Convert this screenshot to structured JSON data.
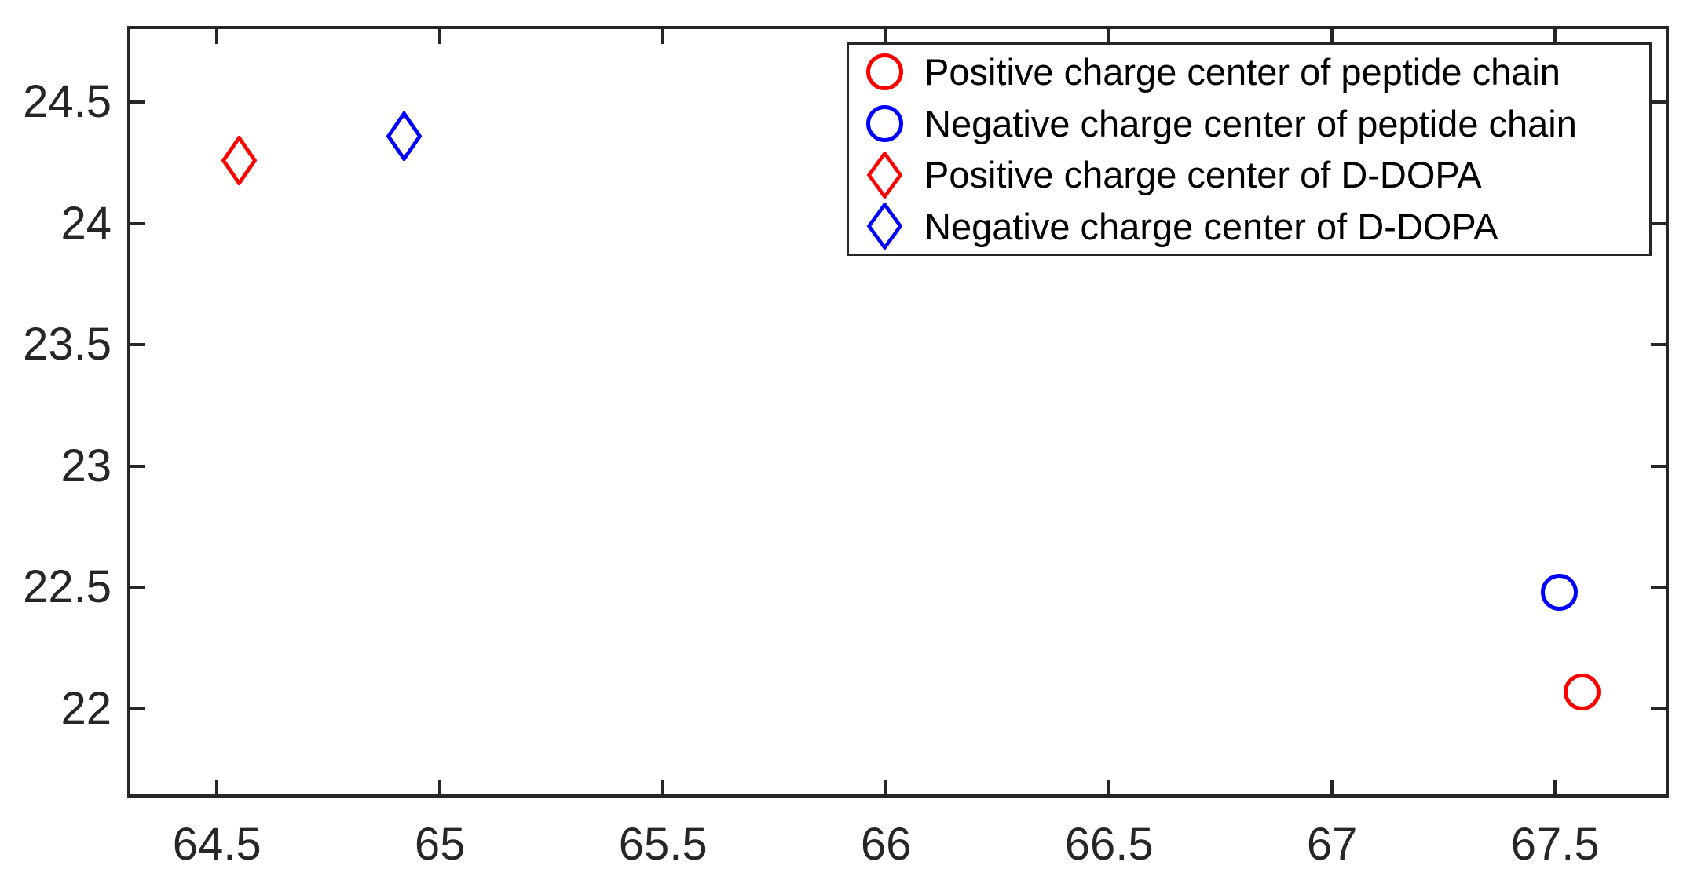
{
  "figure": {
    "background": "#ffffff",
    "axis_color": "#262626",
    "tick_text_color": "#262626",
    "legend_text_color": "#000000"
  },
  "chart_data": {
    "type": "scatter",
    "title": "",
    "xlabel": "",
    "ylabel": "",
    "xlim": [
      64.299,
      67.755
    ],
    "ylim": [
      21.634,
      24.814
    ],
    "xticks": [
      64.5,
      65,
      65.5,
      66,
      66.5,
      67,
      67.5
    ],
    "yticks": [
      22,
      22.5,
      23,
      23.5,
      24,
      24.5
    ],
    "grid": false,
    "legend_position": "top-right",
    "series": [
      {
        "name": "Positive charge center of peptide chain",
        "marker": "circle",
        "color": "#ff0000",
        "points": [
          [
            67.56,
            22.07
          ]
        ]
      },
      {
        "name": "Negative charge center of peptide chain",
        "marker": "circle",
        "color": "#0000ff",
        "points": [
          [
            67.51,
            22.48
          ]
        ]
      },
      {
        "name": "Positive charge center of D-DOPA",
        "marker": "diamond",
        "color": "#ff0000",
        "points": [
          [
            64.55,
            24.26
          ]
        ]
      },
      {
        "name": "Negative charge center of D-DOPA",
        "marker": "diamond",
        "color": "#0000ff",
        "points": [
          [
            64.92,
            24.36
          ]
        ]
      }
    ]
  }
}
